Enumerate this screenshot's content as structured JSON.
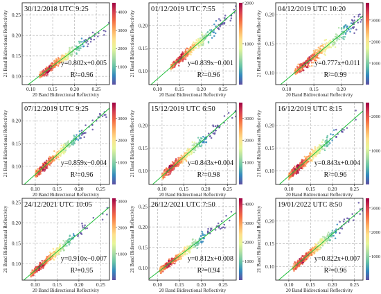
{
  "figure": {
    "xlabel": "20 Band Bidirectional Reflectivity",
    "ylabel": "21 Band Bidirectional Reflectivity"
  },
  "colors": {
    "fit_line": "#1fbf3a",
    "colormap": [
      "#5e4fa2",
      "#3288bd",
      "#66c2a5",
      "#abdda4",
      "#e6f598",
      "#fee08b",
      "#fdae61",
      "#f46d43",
      "#d53e4f",
      "#9e0142"
    ]
  },
  "chart_data": [
    {
      "type": "scatter",
      "title": "30/12/2018 UTC 9:25",
      "equation": "y=0.802x+0.005",
      "r2": "R²=0.96",
      "slope": 0.802,
      "intercept": 0.005,
      "xlim": [
        0.08,
        0.28
      ],
      "ylim": [
        0.08,
        0.28
      ],
      "xticks": [
        "0.10",
        "0.15",
        "0.20",
        "0.25"
      ],
      "yticks": [
        "0.10",
        "0.15",
        "0.20",
        "0.25"
      ],
      "cbar_max": 4500,
      "cbar_ticks": [
        "1000",
        "2000",
        "3000",
        "4000"
      ],
      "center": [
        0.14,
        0.12
      ]
    },
    {
      "type": "scatter",
      "title": "01/12/2019 UTC 7:55",
      "equation": "y=0.839x−0.001",
      "r2": "R²=0.96",
      "slope": 0.839,
      "intercept": -0.001,
      "xlim": [
        0.08,
        0.28
      ],
      "ylim": [
        0.07,
        0.25
      ],
      "xticks": [
        "0.10",
        "0.15",
        "0.20",
        "0.25"
      ],
      "yticks": [
        "0.10",
        "0.15",
        "0.20"
      ],
      "cbar_max": 2000,
      "cbar_ticks": [
        "1000",
        "2000"
      ],
      "center": [
        0.15,
        0.125
      ]
    },
    {
      "type": "scatter",
      "title": "04/12/2019 UTC 10:20",
      "equation": "y=0.777x+0.011",
      "r2": "R²=0.99",
      "slope": 0.777,
      "intercept": 0.011,
      "xlim": [
        0.08,
        0.24
      ],
      "ylim": [
        0.08,
        0.22
      ],
      "xticks": [
        "0.10",
        "0.15",
        "0.20"
      ],
      "yticks": [
        "0.10",
        "0.15",
        "0.20"
      ],
      "cbar_max": 3800,
      "cbar_ticks": [
        "1000",
        "2000",
        "3000"
      ],
      "center": [
        0.135,
        0.115
      ]
    },
    {
      "type": "scatter",
      "title": "07/12/2019 UTC 9:25",
      "equation": "y=0.859x−0.004",
      "r2": "R²=0.96",
      "slope": 0.859,
      "intercept": -0.004,
      "xlim": [
        0.07,
        0.27
      ],
      "ylim": [
        0.06,
        0.24
      ],
      "xticks": [
        "0.10",
        "0.15",
        "0.20",
        "0.25"
      ],
      "yticks": [
        "0.10",
        "0.15",
        "0.20"
      ],
      "cbar_max": 3700,
      "cbar_ticks": [
        "1000",
        "2000",
        "3000"
      ],
      "center": [
        0.12,
        0.1
      ]
    },
    {
      "type": "scatter",
      "title": "15/12/2019 UTC 6:50",
      "equation": "y=0.843x+0.004",
      "r2": "R²=0.98",
      "slope": 0.843,
      "intercept": 0.004,
      "xlim": [
        0.07,
        0.27
      ],
      "ylim": [
        0.07,
        0.25
      ],
      "xticks": [
        "0.10",
        "0.15",
        "0.20",
        "0.25"
      ],
      "yticks": [
        "0.10",
        "0.15",
        "0.20"
      ],
      "cbar_max": 3700,
      "cbar_ticks": [
        "1000",
        "2000",
        "3000"
      ],
      "center": [
        0.12,
        0.105
      ]
    },
    {
      "type": "scatter",
      "title": "16/12/2019 UTC 8:15",
      "equation": "y=0.843x+0.004",
      "r2": "R²=0.96",
      "slope": 0.843,
      "intercept": 0.004,
      "xlim": [
        0.07,
        0.27
      ],
      "ylim": [
        0.07,
        0.25
      ],
      "xticks": [
        "0.10",
        "0.15",
        "0.20",
        "0.25"
      ],
      "yticks": [
        "0.10",
        "0.15",
        "0.20"
      ],
      "cbar_max": 2400,
      "cbar_ticks": [
        "1000",
        "2000"
      ],
      "center": [
        0.12,
        0.105
      ]
    },
    {
      "type": "scatter",
      "title": "24/12/2021 UTC 10:05",
      "equation": "y=0.910x−0.007",
      "r2": "R²=0.95",
      "slope": 0.91,
      "intercept": -0.007,
      "xlim": [
        0.07,
        0.27
      ],
      "ylim": [
        0.06,
        0.26
      ],
      "xticks": [
        "0.10",
        "0.15",
        "0.20",
        "0.25"
      ],
      "yticks": [
        "0.10",
        "0.15",
        "0.20",
        "0.25"
      ],
      "cbar_max": 3100,
      "cbar_ticks": [
        "1000",
        "2000",
        "3000"
      ],
      "center": [
        0.11,
        0.095
      ]
    },
    {
      "type": "scatter",
      "title": "26/12/2021 UTC 7:50",
      "equation": "y=0.812x+0.008",
      "r2": "R²=0.94",
      "slope": 0.812,
      "intercept": 0.008,
      "xlim": [
        0.08,
        0.28
      ],
      "ylim": [
        0.07,
        0.27
      ],
      "xticks": [
        "0.10",
        "0.15",
        "0.20",
        "0.25"
      ],
      "yticks": [
        "0.10",
        "0.15",
        "0.20",
        "0.25"
      ],
      "cbar_max": 4300,
      "cbar_ticks": [
        "1000",
        "2000",
        "3000",
        "4000"
      ],
      "center": [
        0.125,
        0.11
      ]
    },
    {
      "type": "scatter",
      "title": "19/01/2022 UTC 8:50",
      "equation": "y=0.822x+0.007",
      "r2": "R²=0.96",
      "slope": 0.822,
      "intercept": 0.007,
      "xlim": [
        0.07,
        0.27
      ],
      "ylim": [
        0.07,
        0.25
      ],
      "xticks": [
        "0.10",
        "0.15",
        "0.20",
        "0.25"
      ],
      "yticks": [
        "0.10",
        "0.15",
        "0.20"
      ],
      "cbar_max": 3400,
      "cbar_ticks": [
        "1000",
        "2000",
        "3000"
      ],
      "center": [
        0.13,
        0.115
      ]
    }
  ]
}
